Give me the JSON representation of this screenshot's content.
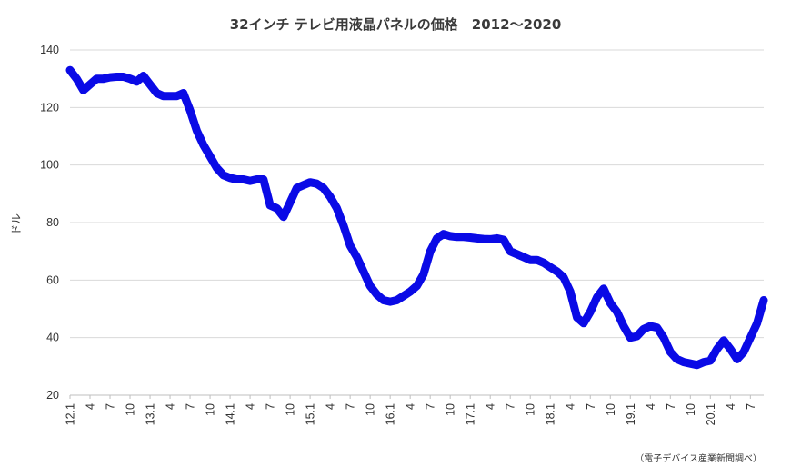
{
  "chart_data": {
    "type": "line",
    "title": "32インチ テレビ用液晶パネルの価格　2012～2020",
    "ylabel": "ドル",
    "xlabel": "",
    "source": "（電子デバイス産業新聞調べ）",
    "ylim": [
      20,
      140
    ],
    "yticks": [
      20,
      40,
      60,
      80,
      100,
      120,
      140
    ],
    "grid": true,
    "legend": "none",
    "colors": {
      "line": "#0a0ae6",
      "grid": "#d9d9d9",
      "axis": "#bfbfbf"
    },
    "x_tick_labels": [
      "12.1",
      "4",
      "7",
      "10",
      "13.1",
      "4",
      "7",
      "10",
      "14.1",
      "4",
      "7",
      "10",
      "15.1",
      "4",
      "7",
      "10",
      "16.1",
      "4",
      "7",
      "10",
      "17.1",
      "4",
      "7",
      "10",
      "18.1",
      "4",
      "7",
      "10",
      "19.1",
      "4",
      "7",
      "10",
      "20.1",
      "4",
      "7"
    ],
    "series": [
      {
        "values": [
          133,
          130,
          126,
          128,
          130,
          130,
          130.5,
          130.7,
          130.7,
          130,
          129,
          131,
          128,
          125,
          124,
          124,
          124,
          125,
          119,
          112,
          107,
          103,
          99,
          96.5,
          95.5,
          95,
          95,
          94.5,
          95,
          95,
          86,
          85,
          82,
          87,
          92,
          93,
          94,
          93.5,
          92,
          89,
          85,
          79,
          72,
          68,
          63,
          58,
          55,
          53,
          52.5,
          53,
          54.5,
          56,
          58,
          62,
          70,
          74.5,
          76,
          75.3,
          75,
          75,
          74.8,
          74.5,
          74.3,
          74.2,
          74.5,
          74,
          70,
          69,
          68,
          67,
          67,
          66,
          64.5,
          63,
          61,
          56,
          47,
          45,
          49,
          54,
          57,
          52,
          49,
          44,
          40,
          40.5,
          43,
          44,
          43.5,
          40,
          35,
          32.5,
          31.5,
          31,
          30.5,
          31.5,
          32,
          36,
          39,
          36,
          32.5,
          35,
          40,
          45,
          53
        ]
      }
    ]
  }
}
